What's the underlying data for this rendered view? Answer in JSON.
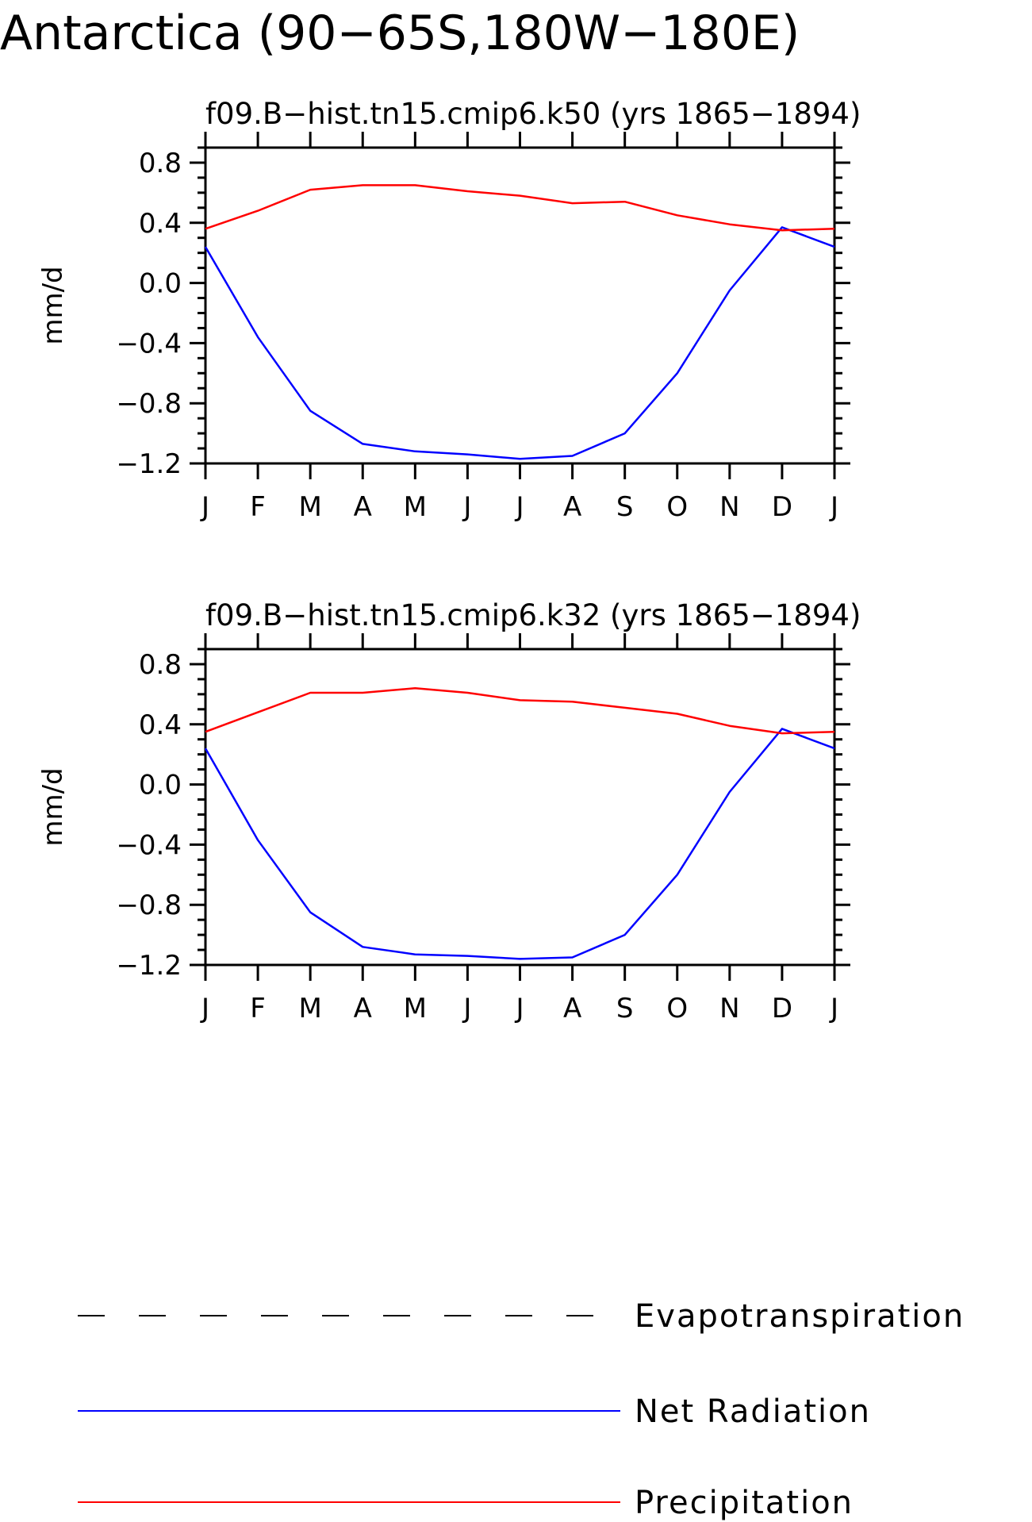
{
  "title": "Antarctica (90−65S,180W−180E)",
  "colors": {
    "net_radiation": "#0000ff",
    "precipitation": "#ff0000",
    "evapotranspiration": "#000000",
    "axes": "#000000"
  },
  "chart_data": [
    {
      "type": "line",
      "title": "f09.B−hist.tn15.cmip6.k50 (yrs 1865−1894)",
      "xlabel": "",
      "ylabel": "mm/d",
      "categories": [
        "J",
        "F",
        "M",
        "A",
        "M",
        "J",
        "J",
        "A",
        "S",
        "O",
        "N",
        "D",
        "J"
      ],
      "ylim": [
        -1.2,
        0.9
      ],
      "yticks": [
        {
          "value": 0.8,
          "label": "0.8"
        },
        {
          "value": 0.4,
          "label": "0.4"
        },
        {
          "value": 0.0,
          "label": "0.0"
        },
        {
          "value": -0.4,
          "label": "−0.4"
        },
        {
          "value": -0.8,
          "label": "−0.8"
        },
        {
          "value": -1.2,
          "label": "−1.2"
        }
      ],
      "series": [
        {
          "name": "Net Radiation",
          "color": "#0000ff",
          "values": [
            0.24,
            -0.36,
            -0.85,
            -1.07,
            -1.12,
            -1.14,
            -1.17,
            -1.15,
            -1.0,
            -0.6,
            -0.05,
            0.37,
            0.24
          ]
        },
        {
          "name": "Precipitation",
          "color": "#ff0000",
          "values": [
            0.36,
            0.48,
            0.62,
            0.65,
            0.65,
            0.61,
            0.58,
            0.53,
            0.54,
            0.45,
            0.39,
            0.35,
            0.36
          ]
        }
      ]
    },
    {
      "type": "line",
      "title": "f09.B−hist.tn15.cmip6.k32 (yrs 1865−1894)",
      "xlabel": "",
      "ylabel": "mm/d",
      "categories": [
        "J",
        "F",
        "M",
        "A",
        "M",
        "J",
        "J",
        "A",
        "S",
        "O",
        "N",
        "D",
        "J"
      ],
      "ylim": [
        -1.2,
        0.9
      ],
      "yticks": [
        {
          "value": 0.8,
          "label": "0.8"
        },
        {
          "value": 0.4,
          "label": "0.4"
        },
        {
          "value": 0.0,
          "label": "0.0"
        },
        {
          "value": -0.4,
          "label": "−0.4"
        },
        {
          "value": -0.8,
          "label": "−0.8"
        },
        {
          "value": -1.2,
          "label": "−1.2"
        }
      ],
      "series": [
        {
          "name": "Net Radiation",
          "color": "#0000ff",
          "values": [
            0.24,
            -0.37,
            -0.85,
            -1.08,
            -1.13,
            -1.14,
            -1.16,
            -1.15,
            -1.0,
            -0.6,
            -0.05,
            0.37,
            0.24
          ]
        },
        {
          "name": "Precipitation",
          "color": "#ff0000",
          "values": [
            0.35,
            0.48,
            0.61,
            0.61,
            0.64,
            0.61,
            0.56,
            0.55,
            0.51,
            0.47,
            0.39,
            0.34,
            0.35
          ]
        }
      ]
    }
  ],
  "legend": {
    "placement": "bottom",
    "items": [
      {
        "label": "Evapotranspiration",
        "style": "dashed",
        "color": "#000000"
      },
      {
        "label": "Net Radiation",
        "style": "solid",
        "color": "#0000ff"
      },
      {
        "label": "Precipitation",
        "style": "solid",
        "color": "#ff0000"
      }
    ]
  }
}
